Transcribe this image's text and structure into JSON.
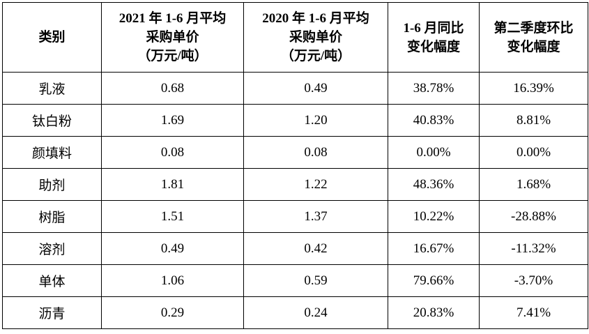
{
  "table": {
    "header": [
      [
        "类别"
      ],
      [
        "2021 年 1-6 月平均",
        "采购单价",
        "（万元/吨）"
      ],
      [
        "2020 年 1-6 月平均",
        "采购单价",
        "（万元/吨）"
      ],
      [
        "1-6 月同比",
        "变化幅度"
      ],
      [
        "第二季度环比",
        "变化幅度"
      ]
    ],
    "rows": [
      [
        "乳液",
        "0.68",
        "0.49",
        "38.78%",
        "16.39%"
      ],
      [
        "钛白粉",
        "1.69",
        "1.20",
        "40.83%",
        "8.81%"
      ],
      [
        "颜填料",
        "0.08",
        "0.08",
        "0.00%",
        "0.00%"
      ],
      [
        "助剂",
        "1.81",
        "1.22",
        "48.36%",
        "1.68%"
      ],
      [
        "树脂",
        "1.51",
        "1.37",
        "10.22%",
        "-28.88%"
      ],
      [
        "溶剂",
        "0.49",
        "0.42",
        "16.67%",
        "-11.32%"
      ],
      [
        "单体",
        "1.06",
        "0.59",
        "79.66%",
        "-3.70%"
      ],
      [
        "沥青",
        "0.29",
        "0.24",
        "20.83%",
        "7.41%"
      ]
    ]
  }
}
